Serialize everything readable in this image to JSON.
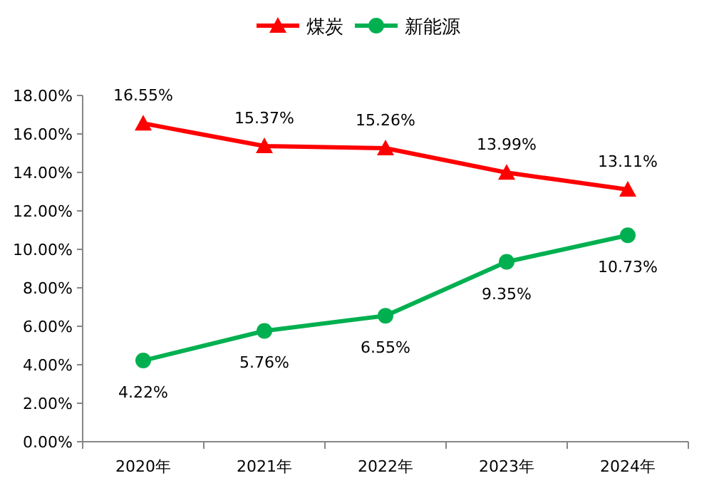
{
  "chart_data": {
    "type": "line",
    "categories": [
      "2020年",
      "2021年",
      "2022年",
      "2023年",
      "2024年"
    ],
    "series": [
      {
        "name": "煤炭",
        "color": "#ff0000",
        "marker": "triangle",
        "values": [
          16.55,
          15.37,
          15.26,
          13.99,
          13.11
        ],
        "value_labels": [
          "16.55%",
          "15.37%",
          "15.26%",
          "13.99%",
          "13.11%"
        ]
      },
      {
        "name": "新能源",
        "color": "#00b050",
        "marker": "circle",
        "values": [
          4.22,
          5.76,
          6.55,
          9.35,
          10.73
        ],
        "value_labels": [
          "4.22%",
          "5.76%",
          "6.55%",
          "9.35%",
          "10.73%"
        ]
      }
    ],
    "ylim": [
      0,
      18
    ],
    "yticks": [
      {
        "value": 0,
        "label": "0.00%"
      },
      {
        "value": 2,
        "label": "2.00%"
      },
      {
        "value": 4,
        "label": "4.00%"
      },
      {
        "value": 6,
        "label": "6.00%"
      },
      {
        "value": 8,
        "label": "8.00%"
      },
      {
        "value": 10,
        "label": "10.00%"
      },
      {
        "value": 12,
        "label": "12.00%"
      },
      {
        "value": 14,
        "label": "14.00%"
      },
      {
        "value": 16,
        "label": "16.00%"
      },
      {
        "value": 18,
        "label": "18.00%"
      }
    ],
    "legend": "top",
    "grid": false
  }
}
